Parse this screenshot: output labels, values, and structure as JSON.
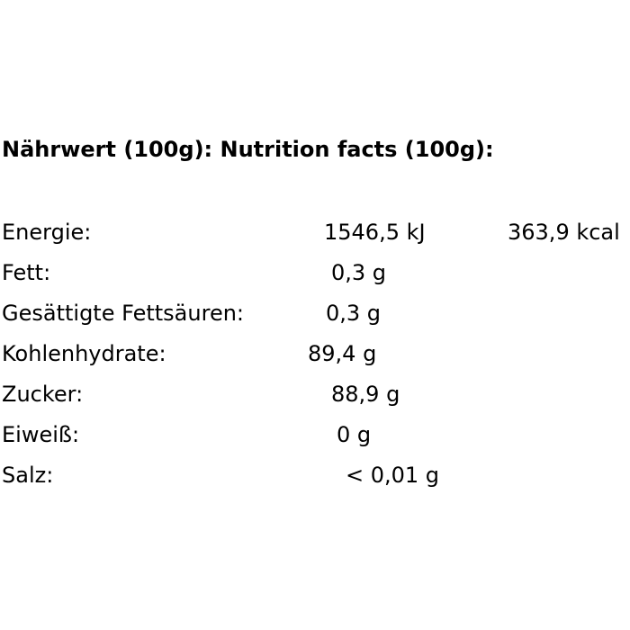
{
  "title": "Nährwert (100g): Nutrition facts (100g):",
  "rows": [
    [
      "Energie:",
      "1546,5 kJ",
      "363,9 kcal"
    ],
    [
      "Fett:",
      "0,3 g"
    ],
    [
      "Gesättigte Fettsäuren:",
      "0,3 g"
    ],
    [
      "Kohlenhydrate:",
      "89,4 g"
    ],
    [
      "Zucker:",
      "88,9 g"
    ],
    [
      "Eiweiß:",
      "0 g"
    ],
    [
      "Salz:",
      "< 0,01 g"
    ]
  ]
}
